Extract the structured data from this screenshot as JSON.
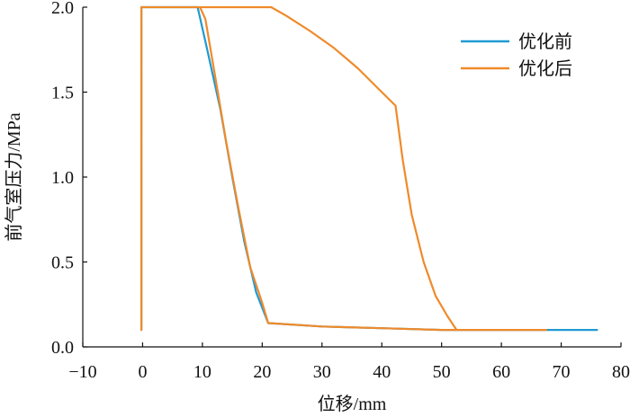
{
  "chart_data": {
    "type": "line",
    "xlabel": "位移/mm",
    "ylabel": "前气室压力/MPa",
    "xlim": [
      -10,
      80
    ],
    "ylim": [
      0,
      2.0
    ],
    "xticks": [
      -10,
      0,
      10,
      20,
      30,
      40,
      50,
      60,
      70,
      80
    ],
    "yticks": [
      0.0,
      0.5,
      1.0,
      1.5,
      2.0
    ],
    "xtick_labels": [
      "−10",
      "0",
      "10",
      "20",
      "30",
      "40",
      "50",
      "60",
      "70",
      "80"
    ],
    "ytick_labels": [
      "0.0",
      "0.5",
      "1.0",
      "1.5",
      "2.0"
    ],
    "legend_position": "top-right",
    "grid": false,
    "series": [
      {
        "name": "优化前",
        "color": "#1f9ad1",
        "x": [
          -0.2,
          -0.2,
          0,
          9.2,
          11,
          13,
          15,
          17,
          19,
          21,
          30,
          40,
          50,
          60,
          76
        ],
        "y": [
          0.1,
          2.0,
          2.0,
          2.0,
          1.72,
          1.4,
          1.0,
          0.62,
          0.32,
          0.14,
          0.12,
          0.11,
          0.1,
          0.1,
          0.1
        ]
      },
      {
        "name": "优化后",
        "color": "#ef8a2a",
        "x": [
          -0.2,
          -0.2,
          0,
          9.6,
          10.5,
          12,
          14,
          16,
          18,
          20,
          21,
          30,
          40,
          50,
          60,
          67.5,
          52.5,
          51,
          49,
          47,
          45,
          43.5,
          42.3,
          40,
          36,
          32,
          28,
          24,
          21.5,
          10,
          0
        ],
        "y": [
          0.1,
          2.0,
          2.0,
          2.0,
          1.93,
          1.62,
          1.2,
          0.82,
          0.47,
          0.26,
          0.14,
          0.12,
          0.11,
          0.1,
          0.1,
          0.1,
          0.1,
          0.18,
          0.3,
          0.5,
          0.78,
          1.1,
          1.42,
          1.5,
          1.64,
          1.76,
          1.86,
          1.95,
          2.0,
          2.0,
          2.0
        ]
      }
    ]
  }
}
